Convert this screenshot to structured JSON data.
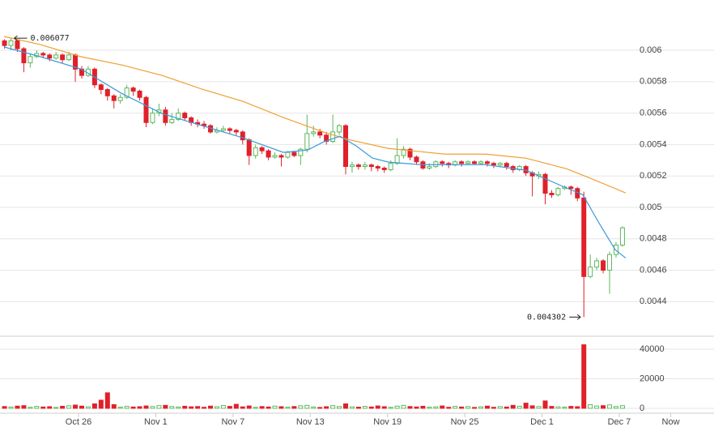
{
  "chart_data": {
    "type": "candlestick",
    "x": [
      -5.75,
      -5.25,
      -4.75,
      -4.25,
      -3.75,
      -3.25,
      -2.75,
      -2.25,
      -1.75,
      -1.25,
      -0.75,
      -0.25,
      0.25,
      0.75,
      1.25,
      1.75,
      2.25,
      2.75,
      3.25,
      3.75,
      4.25,
      4.75,
      5.25,
      5.75,
      6.25,
      6.75,
      7.25,
      7.75,
      8.25,
      8.75,
      9.25,
      9.75,
      10.25,
      10.75,
      11.25,
      11.75,
      12.25,
      12.75,
      13.25,
      13.75,
      14.25,
      14.75,
      15.25,
      15.75,
      16.25,
      16.75,
      17.25,
      17.75,
      18.25,
      18.75,
      19.25,
      19.75,
      20.25,
      20.75,
      21.25,
      21.75,
      22.25,
      22.75,
      23.25,
      23.75,
      24.25,
      24.75,
      25.25,
      25.75,
      26.25,
      26.75,
      27.25,
      27.75,
      28.25,
      28.75,
      29.25,
      29.75,
      30.25,
      30.75,
      31.25,
      31.75,
      32.25,
      32.75,
      33.25,
      33.75,
      34.25,
      34.75,
      35.25,
      35.75,
      36.25,
      36.75,
      37.25,
      37.75,
      38.25,
      38.75,
      39.25,
      39.75,
      40.25,
      40.75,
      41.25,
      41.75,
      42.25
    ],
    "open": [
      0.00606,
      0.00603,
      0.00606,
      0.00601,
      0.00592,
      0.00596,
      0.00598,
      0.00597,
      0.00595,
      0.00597,
      0.00594,
      0.00597,
      0.00588,
      0.00584,
      0.00588,
      0.00578,
      0.00575,
      0.00571,
      0.00568,
      0.0057,
      0.00576,
      0.00574,
      0.0057,
      0.00554,
      0.0056,
      0.00562,
      0.00554,
      0.00556,
      0.0056,
      0.00557,
      0.00554,
      0.00553,
      0.00552,
      0.00548,
      0.00549,
      0.0055,
      0.00549,
      0.00548,
      0.00543,
      0.00533,
      0.00538,
      0.00536,
      0.00532,
      0.00533,
      0.00532,
      0.00535,
      0.00533,
      0.00537,
      0.00547,
      0.00548,
      0.00546,
      0.00542,
      0.00548,
      0.00552,
      0.00526,
      0.00527,
      0.00526,
      0.00527,
      0.00526,
      0.00525,
      0.00524,
      0.00528,
      0.00533,
      0.00537,
      0.00532,
      0.00529,
      0.00525,
      0.00526,
      0.00529,
      0.00528,
      0.00527,
      0.00529,
      0.00528,
      0.00529,
      0.00528,
      0.00529,
      0.00528,
      0.00527,
      0.00528,
      0.00526,
      0.00524,
      0.00526,
      0.00522,
      0.0052,
      0.00521,
      0.00509,
      0.00508,
      0.00512,
      0.00513,
      0.00512,
      0.00506,
      0.00456,
      0.00462,
      0.00466,
      0.0046,
      0.0047,
      0.00476
    ],
    "high": [
      0.00607,
      0.006077,
      0.00606,
      0.00602,
      0.00598,
      0.006,
      0.00599,
      0.00598,
      0.00599,
      0.00598,
      0.00599,
      0.00598,
      0.0059,
      0.0059,
      0.00589,
      0.00579,
      0.00576,
      0.00572,
      0.00572,
      0.00578,
      0.00577,
      0.00575,
      0.00571,
      0.00563,
      0.00566,
      0.00564,
      0.0056,
      0.00563,
      0.00561,
      0.00558,
      0.00556,
      0.00555,
      0.00553,
      0.00551,
      0.00552,
      0.00551,
      0.0055,
      0.00549,
      0.00544,
      0.0054,
      0.00539,
      0.00537,
      0.00535,
      0.00534,
      0.00536,
      0.00536,
      0.00538,
      0.00559,
      0.00552,
      0.0055,
      0.00548,
      0.00559,
      0.00553,
      0.00553,
      0.00529,
      0.00528,
      0.00529,
      0.00528,
      0.00527,
      0.00526,
      0.0053,
      0.00544,
      0.00539,
      0.00538,
      0.00533,
      0.0053,
      0.00528,
      0.0053,
      0.0053,
      0.00529,
      0.0053,
      0.0053,
      0.0053,
      0.0053,
      0.0053,
      0.0053,
      0.00529,
      0.00529,
      0.00529,
      0.00527,
      0.00527,
      0.00527,
      0.00523,
      0.00523,
      0.00522,
      0.00511,
      0.00513,
      0.00514,
      0.00514,
      0.00513,
      0.0051,
      0.0047,
      0.00468,
      0.00467,
      0.00472,
      0.00478,
      0.00488
    ],
    "low": [
      0.00601,
      0.006,
      0.00599,
      0.00586,
      0.00589,
      0.00595,
      0.00595,
      0.00593,
      0.00594,
      0.00592,
      0.00593,
      0.0058,
      0.00582,
      0.00583,
      0.00576,
      0.00572,
      0.00568,
      0.00563,
      0.00566,
      0.00569,
      0.00571,
      0.00568,
      0.00551,
      0.00553,
      0.00558,
      0.00552,
      0.00553,
      0.00555,
      0.00555,
      0.00552,
      0.00551,
      0.0055,
      0.00547,
      0.00547,
      0.00548,
      0.00547,
      0.00546,
      0.0054,
      0.00527,
      0.00531,
      0.00534,
      0.0053,
      0.00531,
      0.00526,
      0.00531,
      0.00532,
      0.00527,
      0.00535,
      0.00545,
      0.00544,
      0.0054,
      0.00541,
      0.00546,
      0.00521,
      0.00522,
      0.00524,
      0.00524,
      0.00523,
      0.00523,
      0.00522,
      0.00523,
      0.00527,
      0.00531,
      0.0053,
      0.00527,
      0.00524,
      0.00524,
      0.00525,
      0.00526,
      0.00525,
      0.00526,
      0.00526,
      0.00527,
      0.00527,
      0.00527,
      0.00526,
      0.00525,
      0.00526,
      0.00524,
      0.00522,
      0.00523,
      0.0052,
      0.00507,
      0.00518,
      0.00502,
      0.00506,
      0.00507,
      0.00511,
      0.00508,
      0.00504,
      0.004302,
      0.00455,
      0.0046,
      0.00458,
      0.00445,
      0.00468,
      0.00475
    ],
    "close": [
      0.00603,
      0.00606,
      0.00601,
      0.00592,
      0.00596,
      0.00598,
      0.00597,
      0.00595,
      0.00597,
      0.00594,
      0.00597,
      0.00588,
      0.00584,
      0.00588,
      0.00578,
      0.00575,
      0.00571,
      0.00568,
      0.0057,
      0.00576,
      0.00574,
      0.0057,
      0.00554,
      0.0056,
      0.00562,
      0.00554,
      0.00556,
      0.0056,
      0.00557,
      0.00554,
      0.00553,
      0.00552,
      0.00548,
      0.00549,
      0.0055,
      0.00549,
      0.00548,
      0.00543,
      0.00533,
      0.00538,
      0.00536,
      0.00532,
      0.00533,
      0.00532,
      0.00535,
      0.00533,
      0.00537,
      0.00547,
      0.00548,
      0.00546,
      0.00542,
      0.00548,
      0.00552,
      0.00526,
      0.00527,
      0.00526,
      0.00527,
      0.00526,
      0.00525,
      0.00524,
      0.00528,
      0.00533,
      0.00537,
      0.00532,
      0.00529,
      0.00525,
      0.00526,
      0.00529,
      0.00528,
      0.00527,
      0.00529,
      0.00528,
      0.00529,
      0.00528,
      0.00529,
      0.00528,
      0.00527,
      0.00528,
      0.00526,
      0.00524,
      0.00526,
      0.00522,
      0.0052,
      0.00521,
      0.00509,
      0.00508,
      0.00512,
      0.00513,
      0.00512,
      0.00506,
      0.00456,
      0.00462,
      0.00466,
      0.0046,
      0.0047,
      0.00476,
      0.00487
    ],
    "volume": [
      1200,
      900,
      1500,
      1800,
      700,
      1300,
      900,
      1100,
      600,
      1400,
      1700,
      2200,
      1500,
      1000,
      3000,
      5500,
      10500,
      2500,
      800,
      1300,
      900,
      1100,
      1600,
      1200,
      1800,
      2000,
      1200,
      900,
      1400,
      1000,
      1200,
      700,
      1500,
      1100,
      1900,
      1300,
      2700,
      1000,
      1600,
      700,
      1200,
      900,
      1500,
      1100,
      800,
      1200,
      1700,
      2000,
      900,
      600,
      1100,
      1800,
      1200,
      3000,
      1000,
      800,
      1300,
      900,
      1600,
      1100,
      700,
      1500,
      2000,
      1200,
      900,
      1400,
      800,
      1000,
      1600,
      700,
      1300,
      900,
      1200,
      600,
      1000,
      1500,
      700,
      1200,
      900,
      2000,
      1400,
      3500,
      1700,
      1200,
      5000,
      1300,
      1000,
      800,
      1300,
      1100,
      43000,
      2500,
      1600,
      1800,
      2300,
      1200,
      1800
    ],
    "up_color": "#5cb85c",
    "down_color": "#e0202a",
    "series": [
      {
        "color": "#f0a030",
        "x": [
          -5.78,
          -2.96,
          0.19,
          3.33,
          6.48,
          9.62,
          12.76,
          15.91,
          19.05,
          20.94,
          24.08,
          28.48,
          31.63,
          34.77,
          37.91,
          39.8,
          42.5
        ],
        "values": [
          0.006088,
          0.006036,
          0.005959,
          0.005907,
          0.00584,
          0.005752,
          0.005675,
          0.005572,
          0.005479,
          0.005432,
          0.005375,
          0.005339,
          0.005339,
          0.005313,
          0.005246,
          0.005184,
          0.005092
        ]
      },
      {
        "color": "#3a9ad9",
        "x": [
          -5.78,
          -2.96,
          0.19,
          3.33,
          6.48,
          9.62,
          12.76,
          15.91,
          17.79,
          19.05,
          20.31,
          21.57,
          22.82,
          24.08,
          26.6,
          31.63,
          34.77,
          37.91,
          39.17,
          40.43,
          41.69,
          42.5
        ],
        "values": [
          0.006021,
          0.005959,
          0.005881,
          0.005726,
          0.005597,
          0.00552,
          0.005443,
          0.00535,
          0.005365,
          0.005417,
          0.005453,
          0.005391,
          0.005314,
          0.005288,
          0.005272,
          0.005272,
          0.005236,
          0.005123,
          0.005081,
          0.0049,
          0.00473,
          0.004678
        ]
      }
    ],
    "annotations": [
      "0.006077",
      "0.004302"
    ],
    "xlim": [
      -6.1,
      49.36
    ],
    "xticks": [
      {
        "value": 0,
        "label": "Oct 26"
      },
      {
        "value": 6,
        "label": "Nov 1"
      },
      {
        "value": 12,
        "label": "Nov 7"
      },
      {
        "value": 18,
        "label": "Nov 13"
      },
      {
        "value": 24,
        "label": "Nov 19"
      },
      {
        "value": 30,
        "label": "Nov 25"
      },
      {
        "value": 36,
        "label": "Dec 1"
      },
      {
        "value": 42,
        "label": "Dec 7"
      },
      {
        "value": 46,
        "label": "Now"
      }
    ],
    "ylim": [
      0.00418,
      0.00632
    ],
    "yticks": [
      0.0044,
      0.0046,
      0.0048,
      0.005,
      0.0052,
      0.0054,
      0.0056,
      0.0058,
      0.006
    ],
    "volume_ylim": [
      0,
      48800
    ],
    "volume_yticks": [
      0,
      20000,
      40000
    ],
    "grid": true
  }
}
